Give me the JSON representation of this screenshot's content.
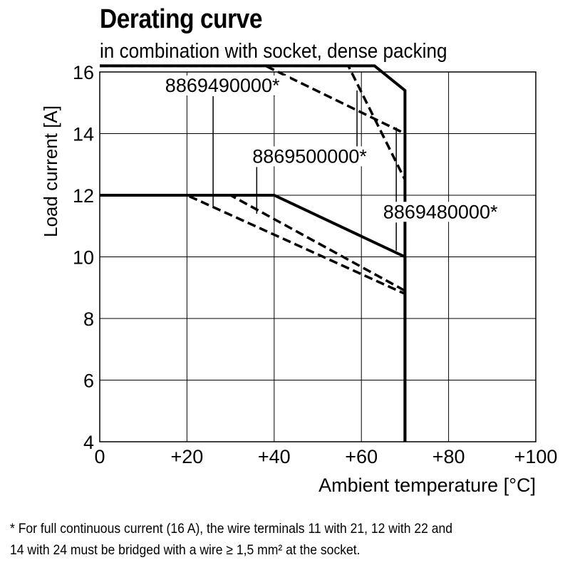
{
  "chart_data": {
    "type": "line",
    "title": "Derating curve",
    "subtitle": "in combination with socket, dense packing",
    "xlabel": "Ambient temperature [°C]",
    "ylabel": "Load current [A]",
    "xlim": [
      0,
      100
    ],
    "ylim": [
      4,
      16
    ],
    "xticks": [
      {
        "value": 0,
        "label": "0"
      },
      {
        "value": 20,
        "label": "+20"
      },
      {
        "value": 40,
        "label": "+40"
      },
      {
        "value": 60,
        "label": "+60"
      },
      {
        "value": 80,
        "label": "+80"
      },
      {
        "value": 100,
        "label": "+100"
      }
    ],
    "yticks": [
      {
        "value": 4,
        "label": "4"
      },
      {
        "value": 6,
        "label": "6"
      },
      {
        "value": 8,
        "label": "8"
      },
      {
        "value": 10,
        "label": "10"
      },
      {
        "value": 12,
        "label": "12"
      },
      {
        "value": 14,
        "label": "14"
      },
      {
        "value": 16,
        "label": "16"
      }
    ],
    "grid": true,
    "series": [
      {
        "group": "A",
        "style": "solid",
        "points": [
          [
            0,
            16.2
          ],
          [
            63,
            16.2
          ],
          [
            70,
            15.4
          ],
          [
            70,
            4
          ]
        ]
      },
      {
        "group": "A",
        "style": "dashed",
        "points": [
          [
            0,
            16.2
          ],
          [
            57,
            16.2
          ],
          [
            70,
            12.5
          ]
        ]
      },
      {
        "group": "A",
        "style": "dashed",
        "points": [
          [
            0,
            16.2
          ],
          [
            38,
            16.2
          ],
          [
            70,
            14.0
          ]
        ]
      },
      {
        "group": "B",
        "style": "solid",
        "points": [
          [
            0,
            12.0
          ],
          [
            40,
            12.0
          ],
          [
            70,
            10.0
          ],
          [
            70,
            4
          ]
        ]
      },
      {
        "group": "B",
        "style": "dashed",
        "points": [
          [
            0,
            12.0
          ],
          [
            30,
            12.0
          ],
          [
            70,
            8.9
          ]
        ]
      },
      {
        "group": "B",
        "style": "dashed",
        "points": [
          [
            0,
            12.0
          ],
          [
            20,
            12.0
          ],
          [
            70,
            8.8
          ]
        ]
      }
    ],
    "annotations": [
      {
        "text": "8869490000*",
        "at": [
          15,
          15.4
        ],
        "pointers": [
          [
            40,
            15.4
          ],
          [
            26,
            11.6
          ]
        ]
      },
      {
        "text": "8869500000*",
        "at": [
          35,
          13.1
        ],
        "pointers": [
          [
            59,
            15.4
          ],
          [
            36,
            11.4
          ]
        ]
      },
      {
        "text": "8869480000*",
        "at": [
          65,
          11.3
        ],
        "pointers": [
          [
            68,
            14.2
          ],
          [
            68,
            10.2
          ]
        ]
      }
    ],
    "footnote": [
      "* For full continuous current (16 A), the wire terminals 11 with 21, 12 with 22 and",
      "14 with 24 must be bridged with a wire ≥ 1,5 mm² at the socket."
    ]
  }
}
